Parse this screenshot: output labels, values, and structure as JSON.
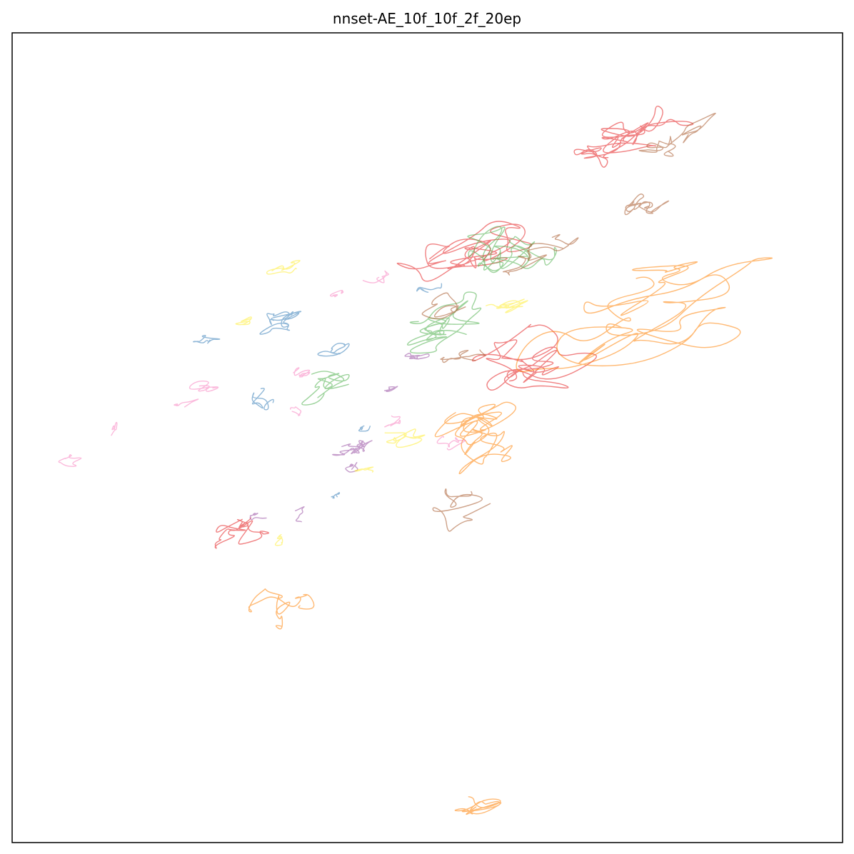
{
  "chart_data": {
    "type": "line",
    "title": "nnset-AE_10f_10f_2f_20ep",
    "xlabel": "",
    "ylabel": "",
    "axes_ticks": false,
    "grid": false,
    "legend": "none",
    "xlim": [
      0,
      100
    ],
    "ylim": [
      0,
      100
    ],
    "colors": {
      "red": "#e41a1c",
      "blue": "#377eb8",
      "green": "#4daf4a",
      "purple": "#984ea3",
      "orange": "#ff7f00",
      "yellow": "#ffed33",
      "brown": "#a65628",
      "pink": "#f781bf"
    },
    "series": [
      {
        "color": "red",
        "clusters": [
          {
            "cx": 73.5,
            "cy": 87.5,
            "sx": 8.5,
            "sy": 4.2,
            "n": 60,
            "seed": 11
          },
          {
            "cx": 54.5,
            "cy": 73.0,
            "sx": 12.0,
            "sy": 5.0,
            "n": 50,
            "seed": 12
          },
          {
            "cx": 63.0,
            "cy": 60.5,
            "sx": 10.0,
            "sy": 5.5,
            "n": 55,
            "seed": 13
          },
          {
            "cx": 27.5,
            "cy": 38.5,
            "sx": 5.0,
            "sy": 3.0,
            "n": 35,
            "seed": 14
          }
        ]
      },
      {
        "color": "blue",
        "clusters": [
          {
            "cx": 32.0,
            "cy": 65.0,
            "sx": 4.5,
            "sy": 2.2,
            "n": 30,
            "seed": 21
          },
          {
            "cx": 23.0,
            "cy": 62.0,
            "sx": 2.5,
            "sy": 1.2,
            "n": 14,
            "seed": 22
          },
          {
            "cx": 38.5,
            "cy": 61.0,
            "sx": 3.5,
            "sy": 1.5,
            "n": 16,
            "seed": 23
          },
          {
            "cx": 30.5,
            "cy": 55.5,
            "sx": 3.5,
            "sy": 2.5,
            "n": 16,
            "seed": 24
          },
          {
            "cx": 51.0,
            "cy": 68.5,
            "sx": 2.5,
            "sy": 1.2,
            "n": 12,
            "seed": 25
          },
          {
            "cx": 42.5,
            "cy": 51.0,
            "sx": 2.0,
            "sy": 1.2,
            "n": 10,
            "seed": 26
          },
          {
            "cx": 38.5,
            "cy": 42.5,
            "sx": 2.0,
            "sy": 0.8,
            "n": 10,
            "seed": 27
          }
        ]
      },
      {
        "color": "green",
        "clusters": [
          {
            "cx": 59.5,
            "cy": 73.0,
            "sx": 6.0,
            "sy": 5.0,
            "n": 55,
            "seed": 31
          },
          {
            "cx": 51.0,
            "cy": 63.5,
            "sx": 8.5,
            "sy": 3.5,
            "n": 45,
            "seed": 32
          },
          {
            "cx": 38.0,
            "cy": 57.5,
            "sx": 5.5,
            "sy": 3.0,
            "n": 25,
            "seed": 33
          }
        ]
      },
      {
        "color": "purple",
        "clusters": [
          {
            "cx": 41.0,
            "cy": 49.0,
            "sx": 3.5,
            "sy": 1.8,
            "n": 35,
            "seed": 41
          },
          {
            "cx": 49.0,
            "cy": 60.0,
            "sx": 2.5,
            "sy": 1.0,
            "n": 18,
            "seed": 42
          },
          {
            "cx": 45.5,
            "cy": 56.0,
            "sx": 2.0,
            "sy": 0.8,
            "n": 12,
            "seed": 43
          },
          {
            "cx": 41.5,
            "cy": 46.5,
            "sx": 2.0,
            "sy": 1.2,
            "n": 14,
            "seed": 44
          },
          {
            "cx": 30.5,
            "cy": 40.5,
            "sx": 2.0,
            "sy": 1.0,
            "n": 12,
            "seed": 45
          },
          {
            "cx": 34.5,
            "cy": 40.5,
            "sx": 1.5,
            "sy": 1.0,
            "n": 10,
            "seed": 46
          }
        ]
      },
      {
        "color": "orange",
        "clusters": [
          {
            "cx": 76.0,
            "cy": 63.5,
            "sx": 17.0,
            "sy": 7.0,
            "n": 70,
            "seed": 51
          },
          {
            "cx": 57.0,
            "cy": 50.0,
            "sx": 10.0,
            "sy": 6.5,
            "n": 55,
            "seed": 52
          },
          {
            "cx": 33.0,
            "cy": 27.5,
            "sx": 5.0,
            "sy": 4.5,
            "n": 30,
            "seed": 53
          },
          {
            "cx": 56.5,
            "cy": 5.0,
            "sx": 7.5,
            "sy": 2.2,
            "n": 25,
            "seed": 54
          }
        ]
      },
      {
        "color": "yellow",
        "clusters": [
          {
            "cx": 31.0,
            "cy": 70.5,
            "sx": 4.5,
            "sy": 1.5,
            "n": 16,
            "seed": 61
          },
          {
            "cx": 27.5,
            "cy": 64.0,
            "sx": 2.5,
            "sy": 1.2,
            "n": 12,
            "seed": 62
          },
          {
            "cx": 58.0,
            "cy": 66.5,
            "sx": 6.5,
            "sy": 2.0,
            "n": 22,
            "seed": 63
          },
          {
            "cx": 47.0,
            "cy": 50.5,
            "sx": 5.0,
            "sy": 2.0,
            "n": 20,
            "seed": 64
          },
          {
            "cx": 43.0,
            "cy": 46.0,
            "sx": 2.5,
            "sy": 0.8,
            "n": 10,
            "seed": 65
          },
          {
            "cx": 32.0,
            "cy": 37.5,
            "sx": 3.0,
            "sy": 1.2,
            "n": 10,
            "seed": 66
          }
        ]
      },
      {
        "color": "brown",
        "clusters": [
          {
            "cx": 80.0,
            "cy": 87.0,
            "sx": 5.0,
            "sy": 3.0,
            "n": 35,
            "seed": 71
          },
          {
            "cx": 75.5,
            "cy": 78.5,
            "sx": 4.0,
            "sy": 2.5,
            "n": 30,
            "seed": 72
          },
          {
            "cx": 64.5,
            "cy": 73.5,
            "sx": 5.5,
            "sy": 2.5,
            "n": 30,
            "seed": 73
          },
          {
            "cx": 53.0,
            "cy": 66.5,
            "sx": 4.5,
            "sy": 2.5,
            "n": 22,
            "seed": 74
          },
          {
            "cx": 54.5,
            "cy": 60.0,
            "sx": 3.5,
            "sy": 2.0,
            "n": 18,
            "seed": 75
          },
          {
            "cx": 55.0,
            "cy": 43.0,
            "sx": 6.5,
            "sy": 3.5,
            "n": 20,
            "seed": 76
          }
        ]
      },
      {
        "color": "pink",
        "clusters": [
          {
            "cx": 43.5,
            "cy": 69.0,
            "sx": 2.5,
            "sy": 2.0,
            "n": 14,
            "seed": 81
          },
          {
            "cx": 39.5,
            "cy": 67.5,
            "sx": 1.8,
            "sy": 0.8,
            "n": 10,
            "seed": 82
          },
          {
            "cx": 35.0,
            "cy": 58.0,
            "sx": 2.5,
            "sy": 1.2,
            "n": 14,
            "seed": 83
          },
          {
            "cx": 24.5,
            "cy": 56.5,
            "sx": 4.5,
            "sy": 1.5,
            "n": 16,
            "seed": 84
          },
          {
            "cx": 22.0,
            "cy": 54.0,
            "sx": 3.0,
            "sy": 1.2,
            "n": 10,
            "seed": 85
          },
          {
            "cx": 34.5,
            "cy": 53.5,
            "sx": 2.0,
            "sy": 1.0,
            "n": 10,
            "seed": 86
          },
          {
            "cx": 12.5,
            "cy": 51.0,
            "sx": 1.5,
            "sy": 2.0,
            "n": 10,
            "seed": 87
          },
          {
            "cx": 7.5,
            "cy": 47.5,
            "sx": 4.5,
            "sy": 1.5,
            "n": 12,
            "seed": 88
          },
          {
            "cx": 46.5,
            "cy": 52.0,
            "sx": 2.5,
            "sy": 1.5,
            "n": 12,
            "seed": 89
          },
          {
            "cx": 53.0,
            "cy": 49.5,
            "sx": 3.5,
            "sy": 1.5,
            "n": 14,
            "seed": 90
          }
        ]
      }
    ]
  }
}
